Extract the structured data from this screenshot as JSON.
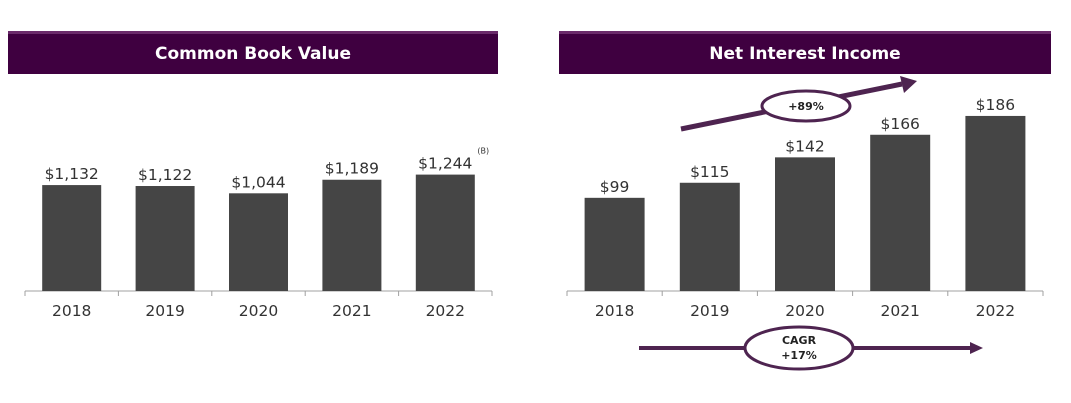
{
  "chart_data": [
    {
      "type": "bar",
      "title": "Common Book Value",
      "categories": [
        "2018",
        "2019",
        "2020",
        "2021",
        "2022"
      ],
      "values": [
        1132,
        1122,
        1044,
        1189,
        1244
      ],
      "value_labels": [
        "$1,132",
        "$1,122",
        "$1,044",
        "$1,189",
        "$1,244"
      ],
      "footnote": "(B)",
      "ylim": [
        0,
        1400
      ],
      "grid": false,
      "bar_color": "#454545"
    },
    {
      "type": "bar",
      "title": "Net Interest Income",
      "categories": [
        "2018",
        "2019",
        "2020",
        "2021",
        "2022"
      ],
      "values": [
        99,
        115,
        142,
        166,
        186
      ],
      "value_labels": [
        "$99",
        "$115",
        "$142",
        "$166",
        "$186"
      ],
      "ylim": [
        0,
        187
      ],
      "grid": false,
      "bar_color": "#454545",
      "annotations": {
        "growth": "+89%",
        "cagr_label": "CAGR",
        "cagr_value": "+17%"
      }
    }
  ],
  "colors": {
    "banner": "#3f0040",
    "accent": "#4e2450",
    "bar": "#454545"
  }
}
